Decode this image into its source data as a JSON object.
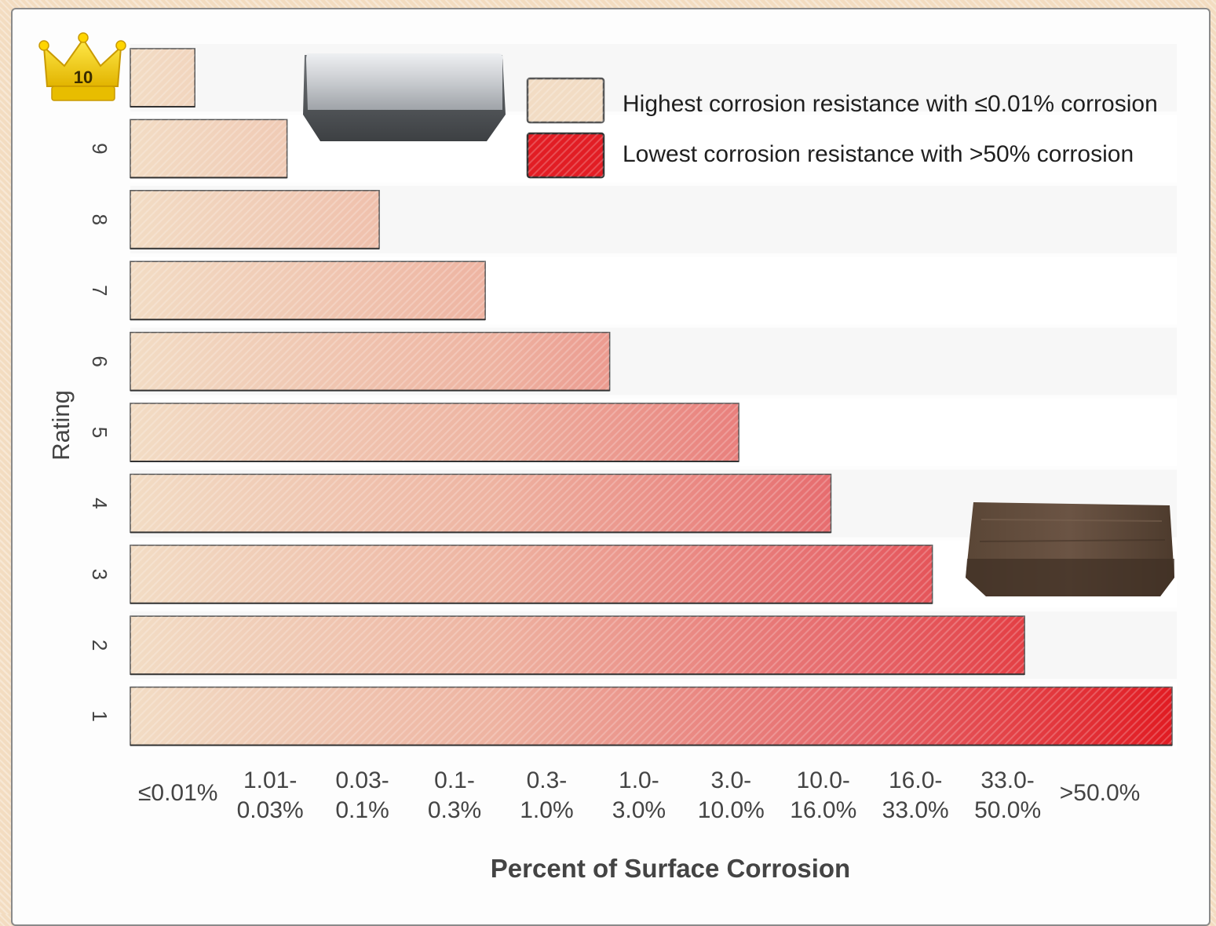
{
  "chart_data": {
    "type": "bar",
    "orientation": "horizontal",
    "ylabel": "Rating",
    "xlabel": "Percent of Surface Corrosion",
    "ratings": [
      "10",
      "9",
      "8",
      "7",
      "6",
      "5",
      "4",
      "3",
      "2",
      "1"
    ],
    "values": [
      1,
      2,
      3,
      4,
      5,
      6,
      7,
      8,
      9,
      10,
      11
    ],
    "x_categories": [
      [
        "≤0.01%"
      ],
      [
        "1.01-",
        "0.03%"
      ],
      [
        "0.03-",
        "0.1%"
      ],
      [
        "0.1-",
        "0.3%"
      ],
      [
        "0.3-",
        "1.0%"
      ],
      [
        "1.0-",
        "3.0%"
      ],
      [
        "3.0-",
        "10.0%"
      ],
      [
        "10.0-",
        "16.0%"
      ],
      [
        "16.0-",
        "33.0%"
      ],
      [
        "33.0-",
        "50.0%"
      ],
      [
        ">50.0%"
      ]
    ],
    "bar_extents": [
      0.7,
      1.7,
      2.7,
      3.85,
      5.2,
      6.6,
      7.6,
      8.7,
      9.7,
      11.3
    ],
    "xlim": [
      0,
      11.3
    ],
    "legend": [
      {
        "label": "Highest corrosion resistance with ≤0.01% corrosion",
        "color": "#f2dcc4"
      },
      {
        "label": "Lowest corrosion resistance with >50% corrosion",
        "color": "#e21d24"
      }
    ],
    "legend_position": "top-right",
    "color_low": "#f2dcc4",
    "color_high": "#e21d24",
    "grid": false
  },
  "crown_icon": "crown-icon",
  "images": [
    "clean-metal-block-image",
    "rusted-metal-block-image"
  ]
}
